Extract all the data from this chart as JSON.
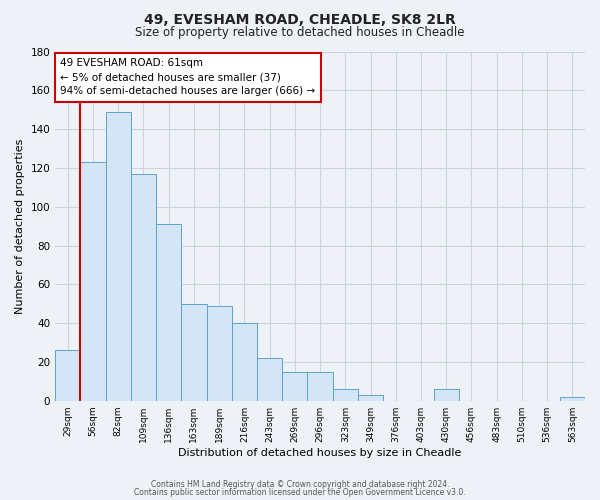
{
  "title": "49, EVESHAM ROAD, CHEADLE, SK8 2LR",
  "subtitle": "Size of property relative to detached houses in Cheadle",
  "xlabel": "Distribution of detached houses by size in Cheadle",
  "ylabel": "Number of detached properties",
  "bar_labels": [
    "29sqm",
    "56sqm",
    "82sqm",
    "109sqm",
    "136sqm",
    "163sqm",
    "189sqm",
    "216sqm",
    "243sqm",
    "269sqm",
    "296sqm",
    "323sqm",
    "349sqm",
    "376sqm",
    "403sqm",
    "430sqm",
    "456sqm",
    "483sqm",
    "510sqm",
    "536sqm",
    "563sqm"
  ],
  "bar_values": [
    26,
    123,
    149,
    117,
    91,
    50,
    49,
    40,
    22,
    15,
    15,
    6,
    3,
    0,
    0,
    6,
    0,
    0,
    0,
    0,
    2
  ],
  "bar_color": "#d4e5f5",
  "bar_edge_color": "#5ba3d0",
  "ylim": [
    0,
    180
  ],
  "yticks": [
    0,
    20,
    40,
    60,
    80,
    100,
    120,
    140,
    160,
    180
  ],
  "vline_x": 0.5,
  "vline_color": "#cc0000",
  "annotation_text": "49 EVESHAM ROAD: 61sqm\n← 5% of detached houses are smaller (37)\n94% of semi-detached houses are larger (666) →",
  "annotation_box_color": "#ffffff",
  "annotation_box_edge": "#cc0000",
  "footer_line1": "Contains HM Land Registry data © Crown copyright and database right 2024.",
  "footer_line2": "Contains public sector information licensed under the Open Government Licence v3.0.",
  "background_color": "#eef2f7",
  "grid_color": "#c8d4e0"
}
